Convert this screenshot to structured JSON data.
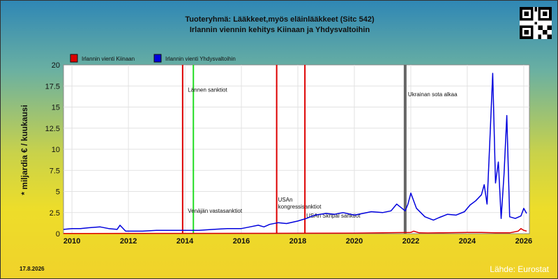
{
  "header": {
    "title_line1": "Tuoteryhmä: Lääkkeet,myös eläinlääkkeet (Sitc 542)",
    "title_line2": "Irlannin viennin kehitys  Kiinaan ja Yhdysvaltoihin"
  },
  "footer": {
    "date": "17.8.2026",
    "source": "Lähde: Eurostat"
  },
  "qr_icon": "qr-code-icon",
  "chart_data": {
    "type": "line",
    "title": "Tuoteryhmä: Lääkkeet,myös eläinlääkkeet (Sitc 542)",
    "subtitle": "Irlannin viennin kehitys  Kiinaan ja Yhdysvaltoihin",
    "ylabel": "* miljardia € / kuukausi",
    "xlabel": "",
    "ylim": [
      0,
      20
    ],
    "xlim": [
      2009.7,
      2026.2
    ],
    "yticks": [
      "0",
      "2.5",
      "5",
      "7.5",
      "10",
      "12.5",
      "15",
      "17.5",
      "20"
    ],
    "ytick_values": [
      0,
      2.5,
      5,
      7.5,
      10,
      12.5,
      15,
      17.5,
      20
    ],
    "xticks": [
      "2010",
      "2012",
      "2014",
      "2016",
      "2018",
      "2020",
      "2022",
      "2024",
      "2026"
    ],
    "xtick_values": [
      2010,
      2012,
      2014,
      2016,
      2018,
      2020,
      2022,
      2024,
      2026
    ],
    "grid": true,
    "legend": "top-left",
    "series": [
      {
        "name": "Irlannin vienti Kiinaan",
        "color": "#dd0000",
        "x": [
          2009.7,
          2012.0,
          2014.0,
          2016.0,
          2018.0,
          2020.0,
          2021.0,
          2021.5,
          2022.0,
          2022.1,
          2022.3,
          2022.6,
          2023.0,
          2024.0,
          2024.5,
          2025.0,
          2025.5,
          2025.8,
          2025.9,
          2026.0,
          2026.1
        ],
        "y": [
          0.02,
          0.03,
          0.03,
          0.04,
          0.05,
          0.06,
          0.1,
          0.12,
          0.15,
          0.3,
          0.1,
          0.08,
          0.1,
          0.15,
          0.15,
          0.1,
          0.1,
          0.3,
          0.6,
          0.4,
          0.3
        ]
      },
      {
        "name": "Irlannin vienti Yhdysvaltoihin",
        "color": "#0000dd",
        "x": [
          2009.7,
          2010.0,
          2010.3,
          2010.6,
          2011.0,
          2011.3,
          2011.6,
          2011.7,
          2011.9,
          2012.5,
          2013.0,
          2013.5,
          2014.0,
          2014.5,
          2015.0,
          2015.5,
          2016.0,
          2016.3,
          2016.6,
          2016.8,
          2017.0,
          2017.3,
          2017.6,
          2018.0,
          2018.3,
          2018.6,
          2019.0,
          2019.3,
          2019.6,
          2020.0,
          2020.3,
          2020.6,
          2021.0,
          2021.3,
          2021.5,
          2021.8,
          2021.9,
          2022.0,
          2022.2,
          2022.5,
          2022.8,
          2023.0,
          2023.3,
          2023.6,
          2023.9,
          2024.1,
          2024.3,
          2024.5,
          2024.6,
          2024.7,
          2024.8,
          2024.9,
          2025.0,
          2025.1,
          2025.2,
          2025.3,
          2025.4,
          2025.5,
          2025.7,
          2025.9,
          2026.0,
          2026.1
        ],
        "y": [
          0.5,
          0.6,
          0.6,
          0.7,
          0.8,
          0.6,
          0.5,
          1.0,
          0.3,
          0.3,
          0.4,
          0.4,
          0.4,
          0.4,
          0.5,
          0.6,
          0.6,
          0.8,
          1.0,
          0.8,
          1.1,
          1.3,
          1.2,
          1.5,
          1.8,
          2.2,
          2.4,
          2.3,
          2.5,
          2.2,
          2.4,
          2.6,
          2.5,
          2.7,
          3.5,
          2.7,
          3.5,
          4.8,
          3.0,
          2.0,
          1.6,
          1.9,
          2.3,
          2.2,
          2.6,
          3.4,
          3.9,
          4.6,
          5.8,
          3.5,
          11.0,
          19.0,
          6.0,
          8.5,
          1.8,
          7.0,
          14.0,
          2.0,
          1.8,
          2.1,
          3.0,
          2.4
        ]
      }
    ],
    "events": [
      {
        "x": 2013.92,
        "color": "#dd0000",
        "label": ""
      },
      {
        "x": 2014.3,
        "color": "#22dd22",
        "label": "Lännen sanktiot",
        "label_y": 16.8
      },
      {
        "x": 2014.3,
        "color": "#22dd22",
        "label": "Venäjän vastasanktiot",
        "label_y": 2.5
      },
      {
        "x": 2017.25,
        "color": "#dd0000",
        "label": "USAn kongressisanktiot",
        "label_y": 3.8
      },
      {
        "x": 2018.25,
        "color": "#dd0000",
        "label": "USAn Skripal sanktiot",
        "label_y": 1.9
      },
      {
        "x": 2021.8,
        "color": "#666666",
        "label": "Ukrainan sota alkaa",
        "label_y": 16.3
      }
    ]
  }
}
